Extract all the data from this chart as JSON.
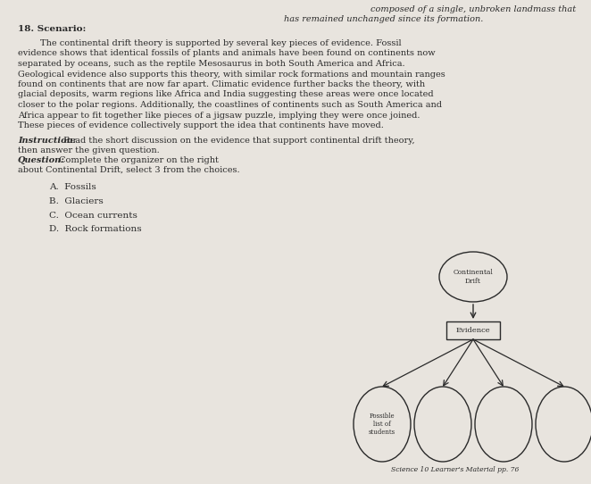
{
  "background_color": "#e8e4de",
  "line0": "composed of a single, unbroken landmass that",
  "line1": "has remained unchanged since its formation.",
  "item_number": "18. Scenario:",
  "scenario_indent": "        The continental drift theory is supported by several key pieces of evidence. Fossil",
  "scenario_lines": [
    "evidence shows that identical fossils of plants and animals have been found on continents now",
    "separated by oceans, such as the reptile Mesosaurus in both South America and Africa.",
    "Geological evidence also supports this theory, with similar rock formations and mountain ranges",
    "found on continents that are now far apart. Climatic evidence further backs the theory, with",
    "glacial deposits, warm regions like Africa and India suggesting these areas were once located",
    "closer to the polar regions. Additionally, the coastlines of continents such as South America and",
    "Africa appear to fit together like pieces of a jigsaw puzzle, implying they were once joined.",
    "These pieces of evidence collectively support the idea that continents have moved."
  ],
  "instruction_bold": "Instruction:",
  "instruction_rest": " Read the short discussion on the evidence that support continental drift theory,",
  "instruction_line2": "then answer the given question.",
  "question_bold": "Question:",
  "question_rest": " Complete the organizer on the right",
  "question_line2": "about Continental Drift, select 3 from the choices.",
  "choices": [
    "A.  Fossils",
    "B.  Glaciers",
    "C.  Ocean currents",
    "D.  Rock formations"
  ],
  "node_top_label": "Continental\nDrift",
  "node_mid_label": "Evidence",
  "node_bottom_label": "Possible\nlist of\nstudents",
  "footer": "Science 10 Learner's Material pp. 76",
  "text_color": "#2a2a2a",
  "diagram_color": "#2a2a2a"
}
